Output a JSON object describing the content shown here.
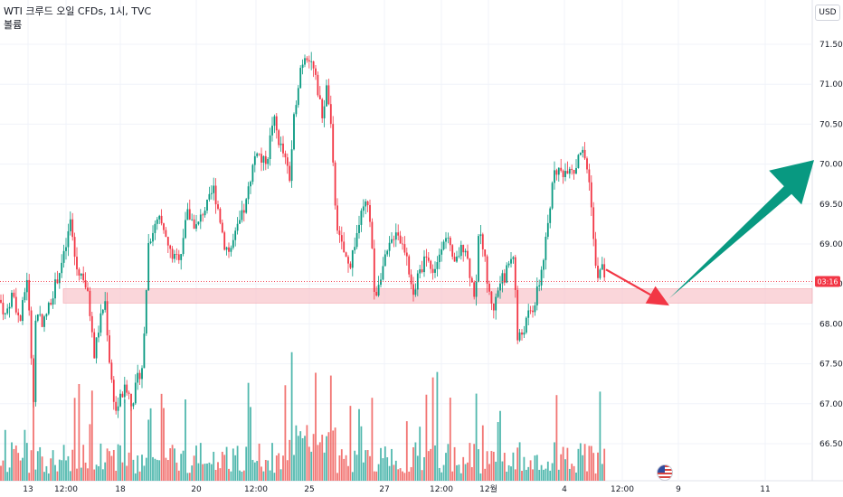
{
  "legend": {
    "title": "WTI 크루드 오일 CFDs, 1시, TVC",
    "volume_label": "볼륨"
  },
  "currency": "USD",
  "chart_data": {
    "type": "candlestick",
    "title": "WTI 크루드 오일 CFDs, 1시, TVC",
    "price_axis": {
      "ticks": [
        "66.50",
        "67.00",
        "67.50",
        "68.00",
        "68.50",
        "69.00",
        "69.50",
        "70.00",
        "70.50",
        "71.00",
        "71.50"
      ],
      "range": [
        66.3,
        71.75
      ]
    },
    "time_axis_labels": [
      "13",
      "12:00",
      "18",
      "20",
      "12:00",
      "25",
      "27",
      "12:00",
      "12월",
      "4",
      "12:00",
      "9",
      "11"
    ],
    "last_price_label": "03:16",
    "last_price": 68.53,
    "support_zone": [
      68.26,
      68.44
    ],
    "price_path": [
      [
        0,
        68.3
      ],
      [
        6,
        68.1
      ],
      [
        14,
        68.4
      ],
      [
        22,
        68.0
      ],
      [
        30,
        68.6
      ],
      [
        37,
        67.1
      ],
      [
        40,
        68.2
      ],
      [
        48,
        68.0
      ],
      [
        56,
        68.3
      ],
      [
        64,
        68.6
      ],
      [
        72,
        68.9
      ],
      [
        78,
        69.3
      ],
      [
        84,
        68.7
      ],
      [
        92,
        68.6
      ],
      [
        98,
        68.3
      ],
      [
        104,
        67.6
      ],
      [
        110,
        68.0
      ],
      [
        116,
        68.3
      ],
      [
        122,
        67.4
      ],
      [
        128,
        66.9
      ],
      [
        134,
        67.1
      ],
      [
        140,
        67.2
      ],
      [
        146,
        67.0
      ],
      [
        152,
        67.3
      ],
      [
        158,
        67.5
      ],
      [
        164,
        69.0
      ],
      [
        170,
        69.2
      ],
      [
        176,
        69.3
      ],
      [
        182,
        69.1
      ],
      [
        188,
        68.9
      ],
      [
        194,
        68.8
      ],
      [
        200,
        68.9
      ],
      [
        206,
        69.4
      ],
      [
        212,
        69.3
      ],
      [
        218,
        69.2
      ],
      [
        224,
        69.4
      ],
      [
        230,
        69.5
      ],
      [
        236,
        69.7
      ],
      [
        242,
        69.4
      ],
      [
        248,
        69.0
      ],
      [
        254,
        68.9
      ],
      [
        260,
        69.1
      ],
      [
        266,
        69.3
      ],
      [
        272,
        69.5
      ],
      [
        278,
        69.9
      ],
      [
        284,
        70.2
      ],
      [
        290,
        70.0
      ],
      [
        296,
        70.1
      ],
      [
        302,
        70.6
      ],
      [
        308,
        70.3
      ],
      [
        314,
        70.1
      ],
      [
        320,
        69.8
      ],
      [
        326,
        70.7
      ],
      [
        332,
        71.2
      ],
      [
        338,
        71.4
      ],
      [
        344,
        71.3
      ],
      [
        350,
        71.0
      ],
      [
        356,
        70.6
      ],
      [
        362,
        71.0
      ],
      [
        366,
        70.4
      ],
      [
        370,
        69.6
      ],
      [
        374,
        69.1
      ],
      [
        380,
        68.9
      ],
      [
        386,
        68.7
      ],
      [
        392,
        69.0
      ],
      [
        398,
        69.3
      ],
      [
        404,
        69.5
      ],
      [
        410,
        69.3
      ],
      [
        414,
        68.3
      ],
      [
        420,
        68.6
      ],
      [
        426,
        68.8
      ],
      [
        432,
        69.0
      ],
      [
        438,
        69.2
      ],
      [
        444,
        69.0
      ],
      [
        450,
        68.9
      ],
      [
        456,
        68.3
      ],
      [
        460,
        68.5
      ],
      [
        466,
        68.7
      ],
      [
        472,
        68.9
      ],
      [
        478,
        68.6
      ],
      [
        484,
        68.8
      ],
      [
        490,
        69.1
      ],
      [
        496,
        69.0
      ],
      [
        502,
        68.7
      ],
      [
        508,
        68.9
      ],
      [
        514,
        69.0
      ],
      [
        520,
        68.6
      ],
      [
        526,
        68.3
      ],
      [
        530,
        69.3
      ],
      [
        536,
        68.8
      ],
      [
        540,
        68.4
      ],
      [
        546,
        68.2
      ],
      [
        552,
        68.5
      ],
      [
        558,
        68.6
      ],
      [
        564,
        68.8
      ],
      [
        568,
        68.9
      ],
      [
        572,
        67.8
      ],
      [
        578,
        67.9
      ],
      [
        584,
        68.1
      ],
      [
        590,
        68.2
      ],
      [
        596,
        68.5
      ],
      [
        602,
        68.9
      ],
      [
        608,
        69.4
      ],
      [
        612,
        70.0
      ],
      [
        618,
        69.9
      ],
      [
        624,
        69.9
      ],
      [
        630,
        70.0
      ],
      [
        636,
        69.9
      ],
      [
        640,
        70.2
      ],
      [
        646,
        70.1
      ],
      [
        650,
        69.9
      ],
      [
        654,
        69.5
      ],
      [
        658,
        68.7
      ],
      [
        662,
        68.6
      ],
      [
        666,
        68.7
      ],
      [
        670,
        68.53
      ]
    ],
    "forecast_arrows": [
      {
        "from": [
          670,
          68.68
        ],
        "to": [
          740,
          68.23
        ],
        "color": "#f23645"
      },
      {
        "from": [
          740,
          68.32
        ],
        "to": [
          900,
          70.05
        ],
        "color": "#089981"
      }
    ],
    "colors": {
      "up": "#089981",
      "down": "#f23645",
      "vol_up": "#26a69a",
      "vol_down": "#ef5350",
      "zone": "#f8c8ce"
    }
  }
}
